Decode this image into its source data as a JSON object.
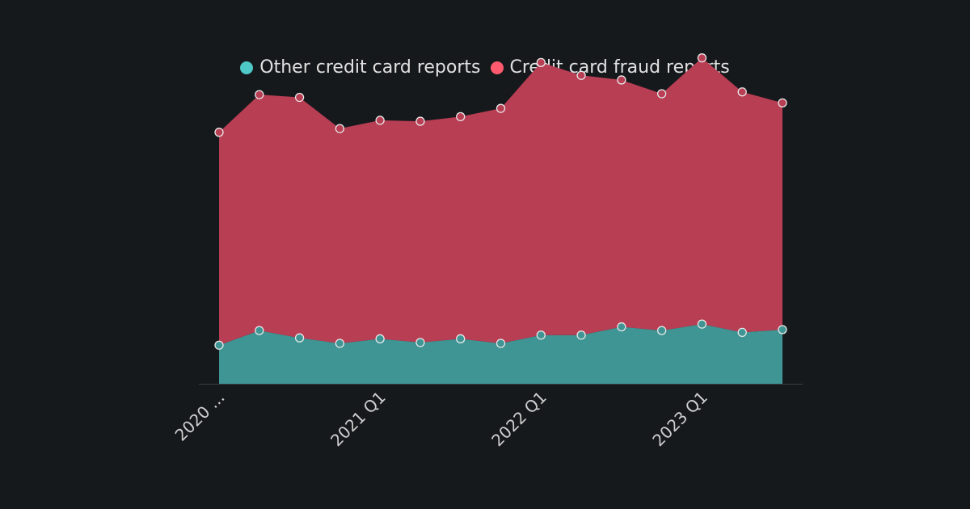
{
  "chart_data": {
    "type": "area",
    "stacked": true,
    "x": [
      "2020 Q1",
      "2020 Q2",
      "2020 Q3",
      "2020 Q4",
      "2021 Q1",
      "2021 Q2",
      "2021 Q3",
      "2021 Q4",
      "2022 Q1",
      "2022 Q2",
      "2022 Q3",
      "2022 Q4",
      "2023 Q1",
      "2023 Q2",
      "2023 Q3"
    ],
    "x_tick_labels": [
      {
        "category": "2020 Q1",
        "label": "2020 ..."
      },
      {
        "category": "2021 Q1",
        "label": "2021 Q1"
      },
      {
        "category": "2022 Q1",
        "label": "2022 Q1"
      },
      {
        "category": "2023 Q1",
        "label": "2023 Q1"
      }
    ],
    "series": [
      {
        "name": "Other credit card reports",
        "color": "#4fc8c8",
        "fill": "#3f9494",
        "values": [
          42,
          58,
          50,
          44,
          49,
          45,
          49,
          44,
          53,
          53,
          62,
          58,
          65,
          56,
          59
        ]
      },
      {
        "name": "Credit card fraud reports",
        "color": "#ff5a6e",
        "fill": "#b83e54",
        "values": [
          232,
          257,
          262,
          234,
          238,
          241,
          242,
          256,
          297,
          283,
          269,
          258,
          290,
          262,
          247
        ]
      }
    ],
    "ylim": [
      0,
      360
    ],
    "grid": false,
    "legend_position": "top-center"
  }
}
